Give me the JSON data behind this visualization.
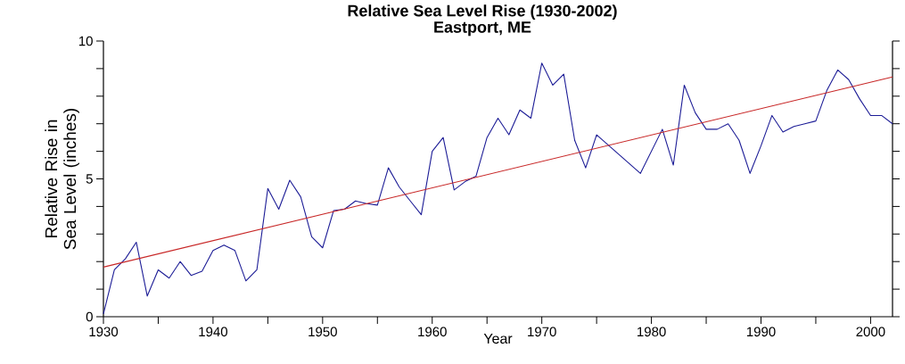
{
  "chart_data": {
    "type": "line",
    "title": "Relative Sea Level Rise (1930-2002)",
    "subtitle": "Eastport, ME",
    "xlabel": "Year",
    "ylabel": "Relative Rise in Sea Level (inches)",
    "xlim": [
      1930,
      2002
    ],
    "ylim": [
      0,
      10
    ],
    "xticks": [
      1930,
      {
        "value": 1935,
        "label": null
      },
      1940,
      {
        "value": 1945,
        "label": null
      },
      1950,
      {
        "value": 1955,
        "label": null
      },
      1960,
      {
        "value": 1965,
        "label": null
      },
      1970,
      {
        "value": 1975,
        "label": null
      },
      1980,
      {
        "value": 1985,
        "label": null
      },
      1990,
      {
        "value": 1995,
        "label": null
      },
      2000
    ],
    "yticks": [
      0,
      {
        "value": 1,
        "label": null
      },
      {
        "value": 2,
        "label": null
      },
      {
        "value": 3,
        "label": null
      },
      {
        "value": 4,
        "label": null
      },
      5,
      {
        "value": 6,
        "label": null
      },
      {
        "value": 7,
        "label": null
      },
      {
        "value": 8,
        "label": null
      },
      {
        "value": 9,
        "label": null
      },
      10
    ],
    "series": [
      {
        "color": "#1c1c96",
        "x": [
          1930,
          1931,
          1932,
          1933,
          1934,
          1935,
          1936,
          1937,
          1938,
          1939,
          1940,
          1941,
          1942,
          1943,
          1944,
          1945,
          1946,
          1947,
          1948,
          1949,
          1950,
          1951,
          1952,
          1953,
          1954,
          1955,
          1956,
          1957,
          1958,
          1959,
          1960,
          1961,
          1962,
          1963,
          1964,
          1965,
          1966,
          1967,
          1968,
          1969,
          1970,
          1971,
          1972,
          1973,
          1974,
          1975,
          1979,
          1981,
          1982,
          1983,
          1984,
          1985,
          1986,
          1987,
          1988,
          1989,
          1990,
          1991,
          1992,
          1993,
          1994,
          1995,
          1996,
          1997,
          1998,
          1999,
          2000,
          2001,
          2002
        ],
        "values": [
          0.1,
          1.7,
          2.1,
          2.7,
          0.75,
          1.7,
          1.4,
          2.0,
          1.5,
          1.65,
          2.4,
          2.6,
          2.4,
          1.3,
          1.7,
          4.65,
          3.9,
          4.95,
          4.35,
          2.9,
          2.5,
          3.85,
          3.9,
          4.2,
          4.1,
          4.05,
          5.4,
          4.7,
          4.2,
          3.7,
          6.0,
          6.5,
          4.6,
          4.9,
          5.1,
          6.5,
          7.2,
          6.6,
          7.5,
          7.2,
          9.2,
          8.4,
          8.8,
          6.4,
          5.4,
          6.6,
          5.2,
          6.8,
          5.5,
          8.4,
          7.4,
          6.8,
          6.8,
          7.0,
          6.4,
          5.2,
          6.2,
          7.3,
          6.7,
          6.9,
          7.0,
          7.1,
          8.2,
          8.95,
          8.6,
          7.9,
          7.3,
          7.3,
          7.0
        ]
      },
      {
        "color": "#c82828",
        "x": [
          1930,
          2002
        ],
        "values": [
          1.8,
          8.7
        ]
      }
    ]
  }
}
